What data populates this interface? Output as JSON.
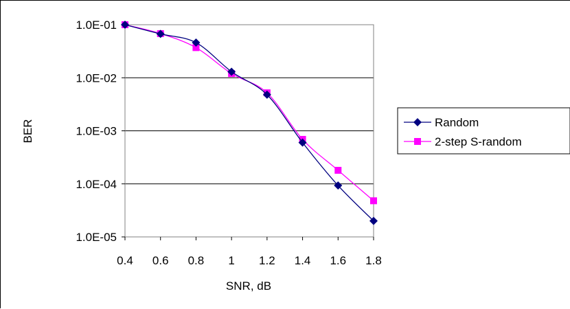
{
  "chart_data": {
    "type": "line",
    "title": "",
    "xlabel": "SNR, dB",
    "ylabel": "BER",
    "x": [
      0.4,
      0.6,
      0.8,
      1.0,
      1.2,
      1.4,
      1.6,
      1.8
    ],
    "x_tick_labels": [
      "0.4",
      "0.6",
      "0.8",
      "1",
      "1.2",
      "1.4",
      "1.6",
      "1.8"
    ],
    "y_scale": "log",
    "ylim": [
      1e-05,
      0.1
    ],
    "y_ticks": [
      0.1,
      0.01,
      0.001,
      0.0001,
      1e-05
    ],
    "y_tick_labels": [
      "1.0E-01",
      "1.0E-02",
      "1.0E-03",
      "1.0E-04",
      "1.0E-05"
    ],
    "grid": "horizontal major gridlines",
    "legend_position": "right",
    "series": [
      {
        "name": "Random",
        "color": "#000080",
        "marker": "diamond",
        "values": [
          0.1,
          0.067,
          0.046,
          0.013,
          0.0048,
          0.0006,
          9.3e-05,
          2e-05
        ]
      },
      {
        "name": "2-step S-random",
        "color": "#FF00FF",
        "marker": "square",
        "values": [
          0.1,
          0.068,
          0.037,
          0.012,
          0.0052,
          0.00069,
          0.00018,
          4.8e-05
        ]
      }
    ]
  }
}
